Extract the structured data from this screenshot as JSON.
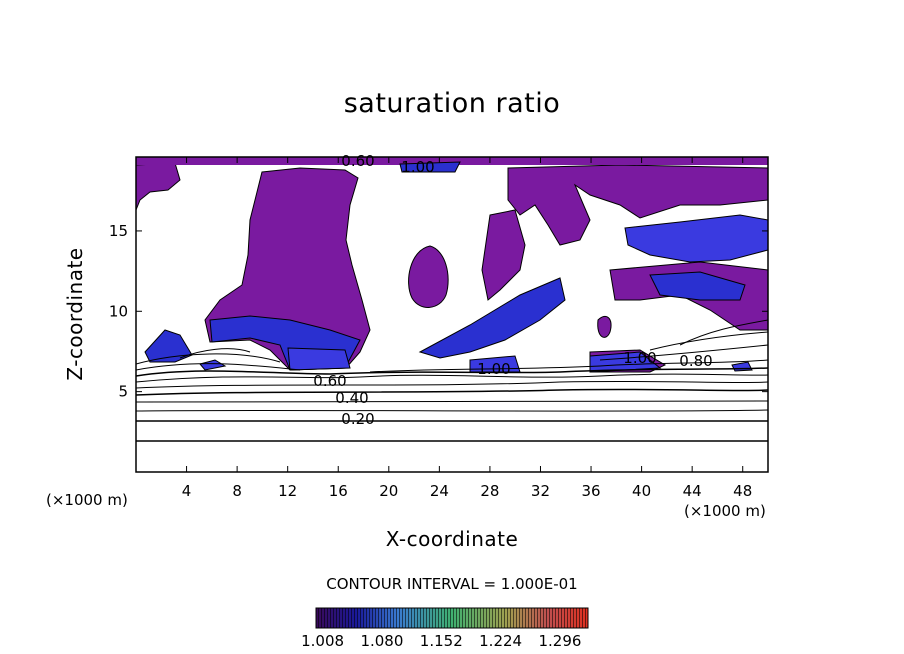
{
  "chart_data": {
    "type": "heatmap",
    "title": "saturation ratio",
    "xlabel": "X-coordinate",
    "ylabel": "Z-coordinate",
    "x_unit_label": "(×1000 m)",
    "x_ticks": [
      4,
      8,
      12,
      16,
      20,
      24,
      28,
      32,
      36,
      40,
      44,
      48
    ],
    "y_ticks": [
      5,
      10,
      15
    ],
    "xlim": [
      0,
      50
    ],
    "ylim": [
      0,
      19.6
    ],
    "contour_interval_text": "CONTOUR INTERVAL = 1.000E-01",
    "contour_labels": [
      "0.20",
      "0.40",
      "0.60",
      "0.80",
      "1.00"
    ],
    "colorbar": {
      "ticks": [
        "1.008",
        "1.080",
        "1.152",
        "1.224",
        "1.296"
      ],
      "range": [
        1.0,
        1.33
      ],
      "colors": [
        "#5a0a78",
        "#1f1fb4",
        "#3070e8",
        "#30c0a0",
        "#50c850",
        "#b0b040",
        "#e04030"
      ]
    },
    "grid": false,
    "legend": "none"
  }
}
